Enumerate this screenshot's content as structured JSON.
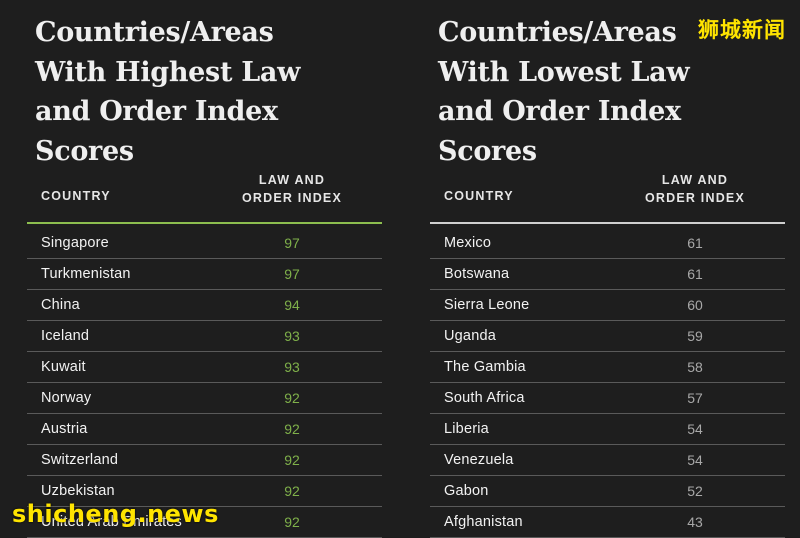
{
  "left": {
    "title": "Countries/Areas\nWith Highest Law\nand Order Index Scores",
    "col_country": "COUNTRY",
    "col_index": "LAW AND\nORDER INDEX",
    "rows": [
      {
        "name": "Singapore",
        "score": "97"
      },
      {
        "name": "Turkmenistan",
        "score": "97"
      },
      {
        "name": "China",
        "score": "94"
      },
      {
        "name": "Iceland",
        "score": "93"
      },
      {
        "name": "Kuwait",
        "score": "93"
      },
      {
        "name": "Norway",
        "score": "92"
      },
      {
        "name": "Austria",
        "score": "92"
      },
      {
        "name": "Switzerland",
        "score": "92"
      },
      {
        "name": "Uzbekistan",
        "score": "92"
      },
      {
        "name": "United Arab Emirates",
        "score": "92"
      }
    ]
  },
  "right": {
    "title": "Countries/Areas\nWith Lowest Law\nand Order Index Scores",
    "col_country": "COUNTRY",
    "col_index": "LAW AND\nORDER INDEX",
    "rows": [
      {
        "name": "Mexico",
        "score": "61"
      },
      {
        "name": "Botswana",
        "score": "61"
      },
      {
        "name": "Sierra Leone",
        "score": "60"
      },
      {
        "name": "Uganda",
        "score": "59"
      },
      {
        "name": "The Gambia",
        "score": "58"
      },
      {
        "name": "South Africa",
        "score": "57"
      },
      {
        "name": "Liberia",
        "score": "54"
      },
      {
        "name": "Venezuela",
        "score": "54"
      },
      {
        "name": "Gabon",
        "score": "52"
      },
      {
        "name": "Afghanistan",
        "score": "43"
      }
    ]
  },
  "watermark": {
    "cn": "狮城新闻",
    "site": "shicheng.news"
  },
  "colors": {
    "background": "#1e1e1e",
    "accent_green": "#7fb04a",
    "watermark_yellow": "#ffe400"
  }
}
